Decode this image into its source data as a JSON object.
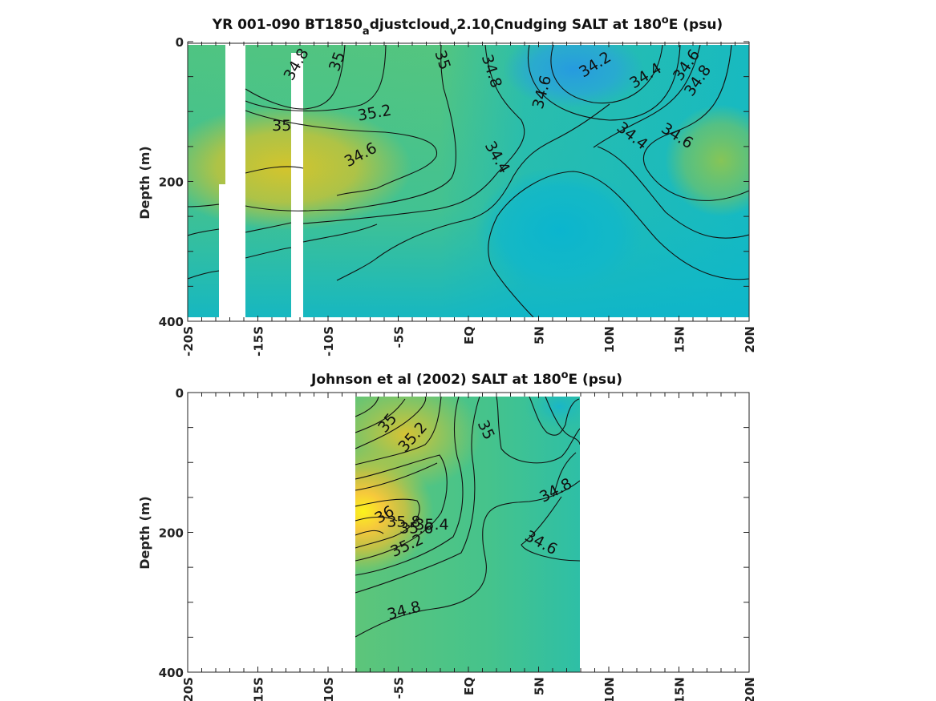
{
  "chart_data": [
    {
      "type": "heatmap",
      "title": "YR 001-090 BT1850_adjustcloud_v2.10_lCnudging SALT at 180°E (psu)",
      "title_parts": {
        "pre": "YR 001-090 BT1850",
        "sub1": "a",
        "mid1": "djustcloud",
        "sub2": "v",
        "mid2": "2.10",
        "sub3": "l",
        "mid3": "Cnudging SALT at 180",
        "sup": "o",
        "post": "E (psu)"
      },
      "ylabel": "Depth (m)",
      "xlim": [
        -20,
        20
      ],
      "ylim": [
        0,
        400
      ],
      "y_reversed": true,
      "x_ticks": [
        {
          "value": -20,
          "label": "-20S"
        },
        {
          "value": -15,
          "label": "-15S"
        },
        {
          "value": -10,
          "label": "-10S"
        },
        {
          "value": -5,
          "label": "-5S"
        },
        {
          "value": 0,
          "label": "EQ"
        },
        {
          "value": 5,
          "label": "5N"
        },
        {
          "value": 10,
          "label": "10N"
        },
        {
          "value": 15,
          "label": "15N"
        },
        {
          "value": 20,
          "label": "20N"
        }
      ],
      "y_ticks": [
        {
          "value": 0,
          "label": "0"
        },
        {
          "value": 200,
          "label": "200"
        },
        {
          "value": 400,
          "label": "400"
        }
      ],
      "data_extent": {
        "lat": [
          -20,
          20
        ],
        "depth": [
          5,
          395
        ]
      },
      "missing_columns": [
        {
          "lat": [
            -17.7,
            -16.0
          ],
          "depth": [
            0,
            400
          ]
        },
        {
          "lat": [
            -12.6,
            -11.8
          ],
          "depth": [
            10,
            400
          ]
        }
      ],
      "color_blobs": [
        {
          "lat": -13,
          "depth": 180,
          "radius_lat": 9,
          "radius_depth": 90,
          "value": 35.2
        },
        {
          "lat": 7.5,
          "depth": 40,
          "radius_lat": 5,
          "radius_depth": 55,
          "value": 34.2
        },
        {
          "lat": 6.5,
          "depth": 270,
          "radius_lat": 6,
          "radius_depth": 90,
          "value": 34.35
        },
        {
          "lat": 18,
          "depth": 170,
          "radius_lat": 4,
          "radius_depth": 80,
          "value": 34.85
        }
      ],
      "contour_labels": [
        {
          "text": "34.8",
          "lat": -12.3,
          "depth": 32
        },
        {
          "text": "35",
          "lat": -9.4,
          "depth": 28
        },
        {
          "text": "35",
          "lat": -1.8,
          "depth": 26
        },
        {
          "text": "34.8",
          "lat": 1.7,
          "depth": 42
        },
        {
          "text": "34.2",
          "lat": 9.0,
          "depth": 32
        },
        {
          "text": "34.4",
          "lat": 12.6,
          "depth": 48
        },
        {
          "text": "34.6",
          "lat": 15.5,
          "depth": 33
        },
        {
          "text": "34.8",
          "lat": 16.3,
          "depth": 55
        },
        {
          "text": "34.6",
          "lat": 5.2,
          "depth": 72
        },
        {
          "text": "35.2",
          "lat": -6.7,
          "depth": 101
        },
        {
          "text": "35",
          "lat": -13.3,
          "depth": 119
        },
        {
          "text": "34.4",
          "lat": 11.7,
          "depth": 134
        },
        {
          "text": "34.6",
          "lat": 14.9,
          "depth": 134
        },
        {
          "text": "34.6",
          "lat": -7.7,
          "depth": 161
        },
        {
          "text": "34.4",
          "lat": 2.1,
          "depth": 165
        }
      ]
    },
    {
      "type": "heatmap",
      "title": "Johnson et al (2002) SALT at 180°E (psu)",
      "title_parts": {
        "pre": "Johnson et al (2002) SALT at 180",
        "sup": "o",
        "post": "E (psu)"
      },
      "ylabel": "Depth (m)",
      "xlim": [
        -20,
        20
      ],
      "ylim": [
        0,
        400
      ],
      "y_reversed": true,
      "x_ticks": [
        {
          "value": -20,
          "label": "20S"
        },
        {
          "value": -15,
          "label": "15S"
        },
        {
          "value": -10,
          "label": "10S"
        },
        {
          "value": -5,
          "label": "-5S"
        },
        {
          "value": 0,
          "label": "EQ"
        },
        {
          "value": 5,
          "label": "5N"
        },
        {
          "value": 10,
          "label": "10N"
        },
        {
          "value": 15,
          "label": "15N"
        },
        {
          "value": 20,
          "label": "20N"
        }
      ],
      "y_ticks": [
        {
          "value": 0,
          "label": "0"
        },
        {
          "value": 200,
          "label": "200"
        },
        {
          "value": 400,
          "label": "400"
        }
      ],
      "data_extent": {
        "lat": [
          -8,
          8
        ],
        "depth": [
          5,
          400
        ]
      },
      "missing_columns": [],
      "color_blobs": [
        {
          "lat": -7.5,
          "depth": 170,
          "radius_lat": 5,
          "radius_depth": 90,
          "value": 36.0
        },
        {
          "lat": 6.5,
          "depth": 20,
          "radius_lat": 2.5,
          "radius_depth": 35,
          "value": 34.6
        }
      ],
      "contour_labels": [
        {
          "text": "35",
          "lat": -5.8,
          "depth": 43
        },
        {
          "text": "35.2",
          "lat": -4.0,
          "depth": 63
        },
        {
          "text": "35",
          "lat": 1.3,
          "depth": 53
        },
        {
          "text": "34.8",
          "lat": 6.2,
          "depth": 139
        },
        {
          "text": "36",
          "lat": -6.0,
          "depth": 174
        },
        {
          "text": "35.8",
          "lat": -4.6,
          "depth": 184
        },
        {
          "text": "35.6",
          "lat": -3.7,
          "depth": 193
        },
        {
          "text": "35.4",
          "lat": -2.6,
          "depth": 188
        },
        {
          "text": "35.2",
          "lat": -4.4,
          "depth": 218
        },
        {
          "text": "34.6",
          "lat": 5.2,
          "depth": 214
        },
        {
          "text": "34.8",
          "lat": -4.6,
          "depth": 311
        }
      ]
    }
  ]
}
